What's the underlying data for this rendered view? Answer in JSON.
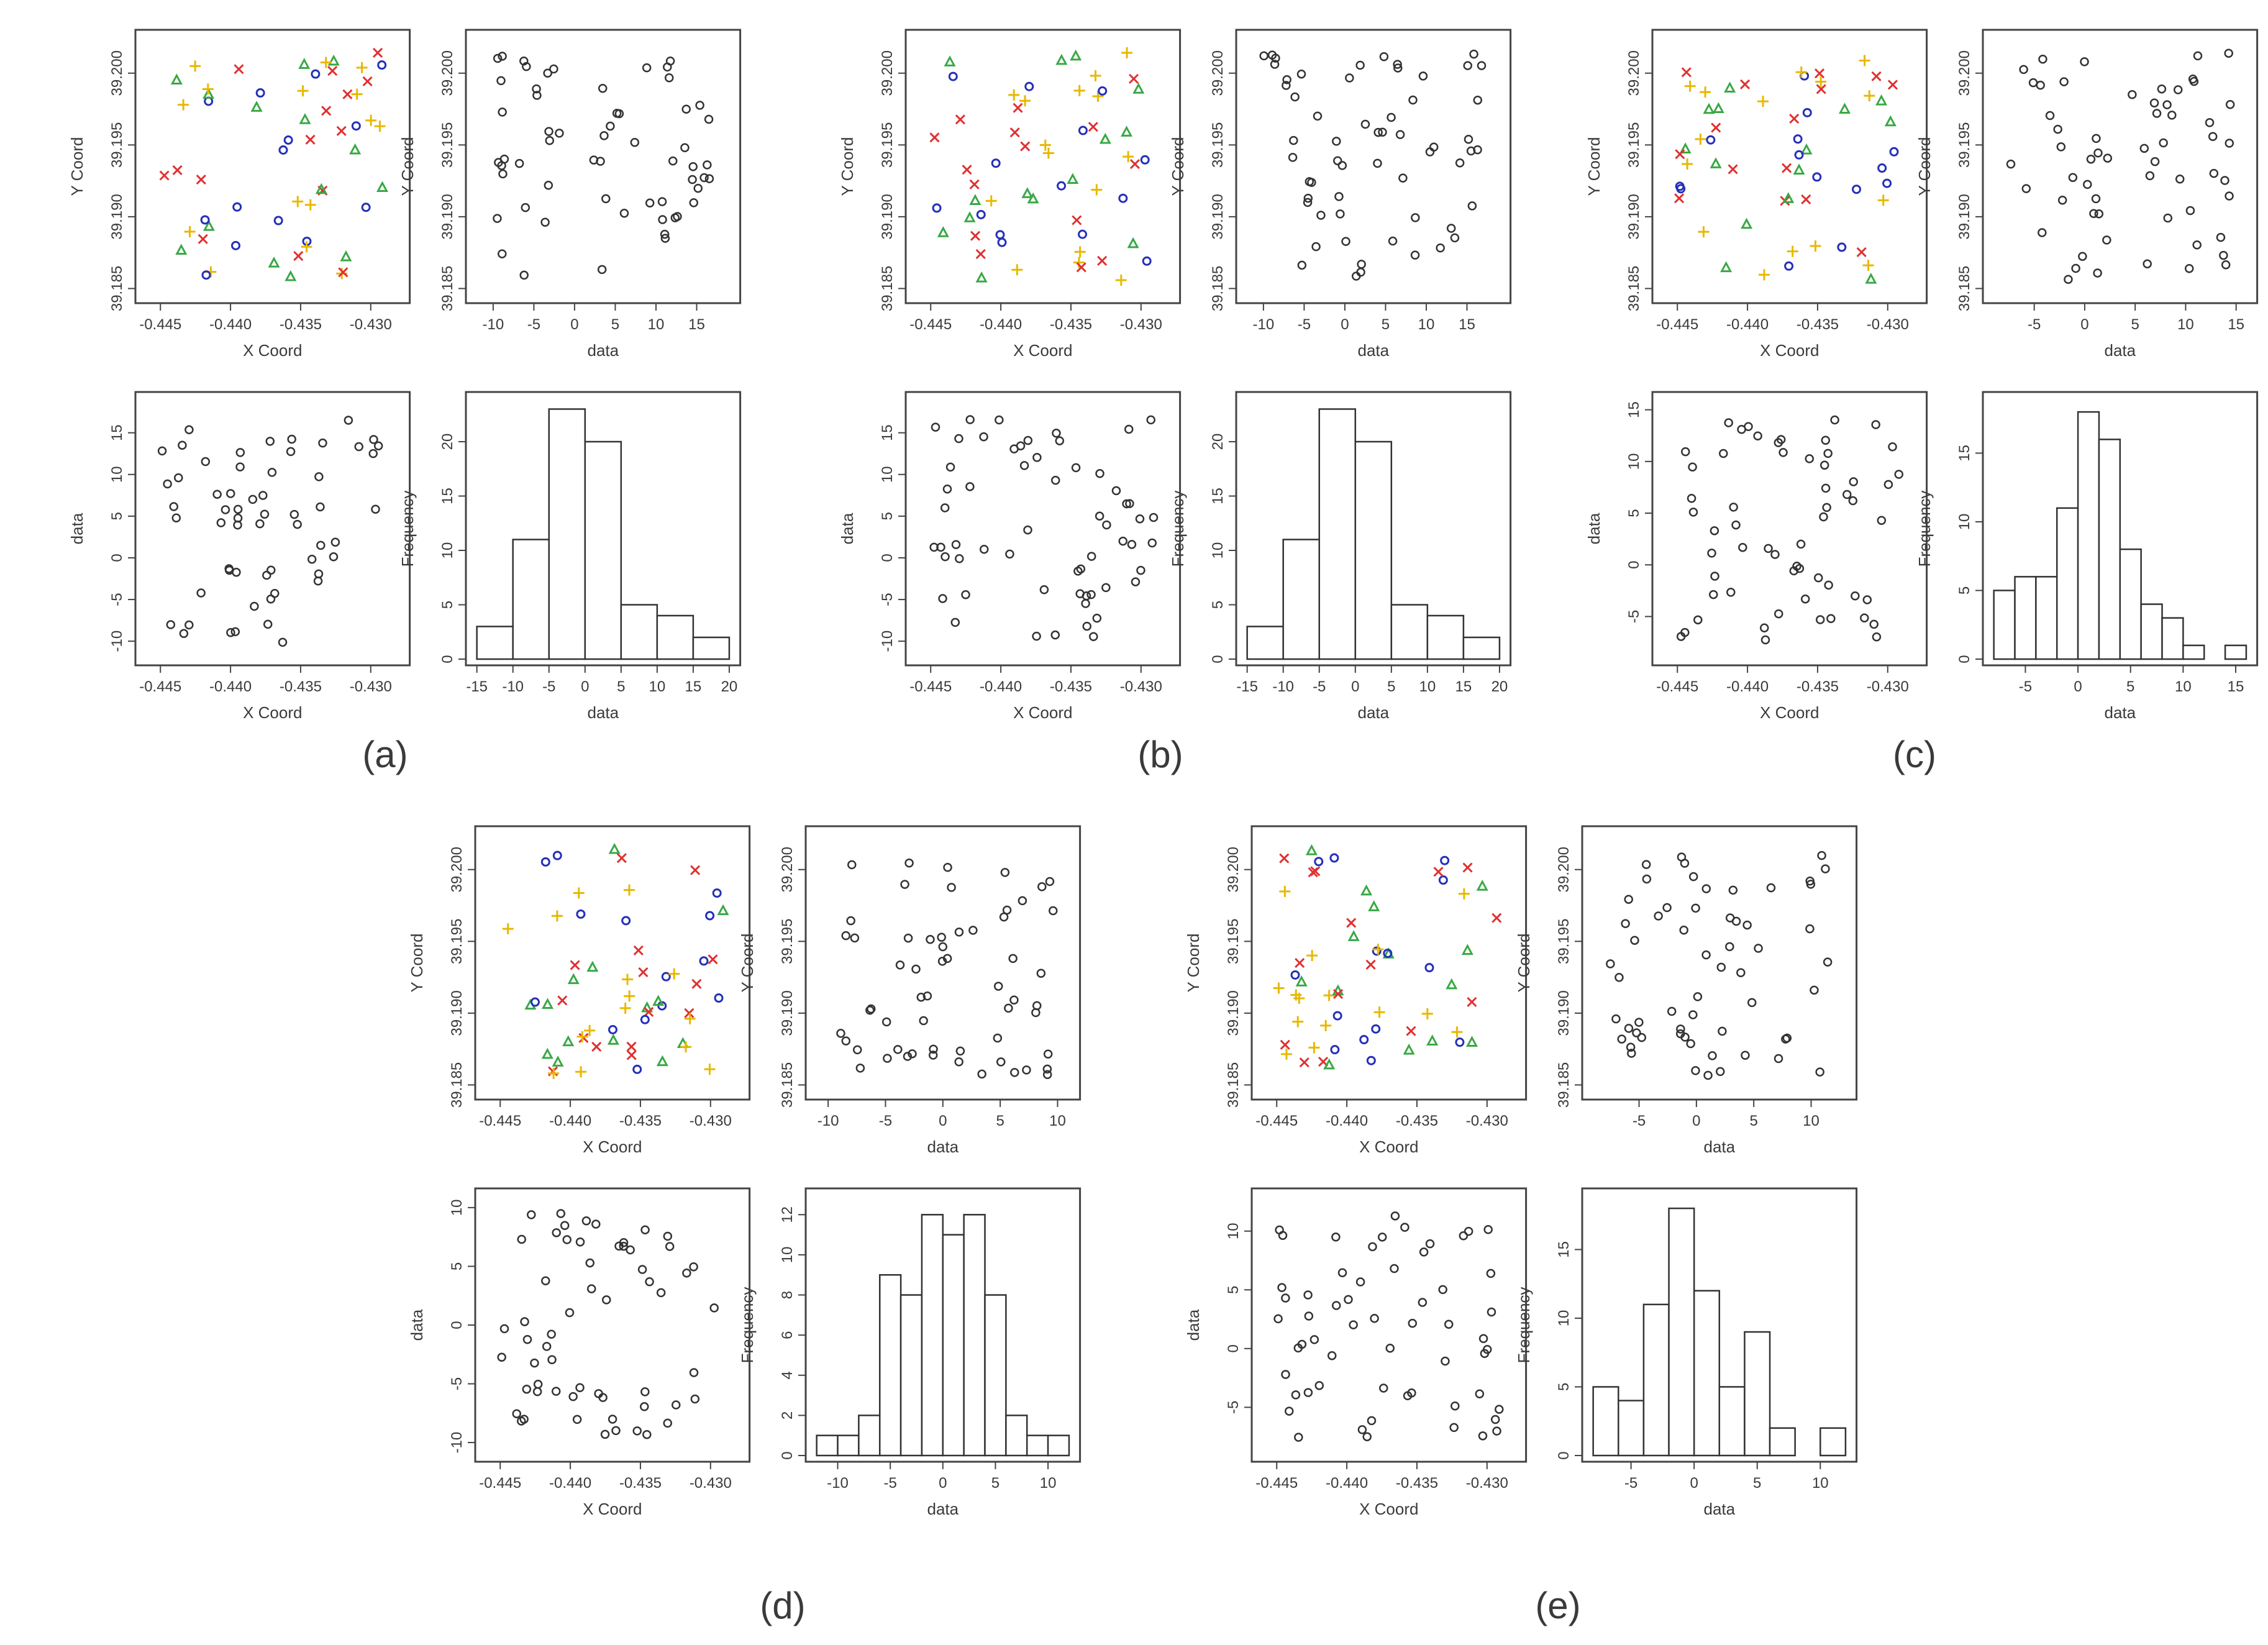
{
  "figure": {
    "panels": [
      {
        "label": "(a)"
      },
      {
        "label": "(b)"
      },
      {
        "label": "(c)"
      },
      {
        "label": "(d)"
      },
      {
        "label": "(e)"
      }
    ],
    "symbol_legend": [
      {
        "shape": "cross",
        "color": "#e03030"
      },
      {
        "shape": "plus",
        "color": "#e8b800"
      },
      {
        "shape": "triangle",
        "color": "#39a845"
      },
      {
        "shape": "circle",
        "color": "#2430b8"
      }
    ]
  },
  "chart_data": [
    {
      "panel": "a",
      "type": "scatter",
      "xlabel": "X Coord",
      "ylabel": "Y Coord",
      "xlim": [
        -0.446,
        -0.428
      ],
      "ylim": [
        39.1845,
        39.2025
      ],
      "xticks": [
        "-0.445",
        "-0.440",
        "-0.435",
        "-0.430"
      ],
      "yticks": [
        "39.185",
        "39.190",
        "39.195",
        "39.200"
      ],
      "seed": 11,
      "groups": 4
    },
    {
      "panel": "a",
      "type": "scatter",
      "xlabel": "data",
      "ylabel": "Y Coord",
      "xlim": [
        -12,
        19
      ],
      "ylim": [
        39.1845,
        39.2025
      ],
      "xticks": [
        "-10",
        "-5",
        "0",
        "5",
        "10",
        "15"
      ],
      "yticks": [
        "39.185",
        "39.190",
        "39.195",
        "39.200"
      ],
      "seed": 12
    },
    {
      "panel": "a",
      "type": "scatter",
      "xlabel": "X Coord",
      "ylabel": "data",
      "xlim": [
        -0.446,
        -0.428
      ],
      "ylim": [
        -12,
        19
      ],
      "xticks": [
        "-0.445",
        "-0.440",
        "-0.435",
        "-0.430"
      ],
      "yticks": [
        "-10",
        "-5",
        "0",
        "5",
        "10",
        "15"
      ],
      "seed": 13
    },
    {
      "panel": "a",
      "type": "bar",
      "xlabel": "data",
      "ylabel": "Frequency",
      "breaks": [
        -15,
        -10,
        -5,
        0,
        5,
        10,
        15,
        20
      ],
      "values": [
        3,
        11,
        23,
        20,
        5,
        4,
        2
      ],
      "ylim": [
        0,
        24
      ],
      "xticks": [
        "-15",
        "-10",
        "-5",
        "0",
        "5",
        "10",
        "15",
        "20"
      ],
      "yticks": [
        "0",
        "5",
        "10",
        "15",
        "20"
      ]
    },
    {
      "panel": "b",
      "type": "scatter",
      "xlabel": "X Coord",
      "ylabel": "Y Coord",
      "xlim": [
        -0.446,
        -0.428
      ],
      "ylim": [
        39.1845,
        39.2025
      ],
      "xticks": [
        "-0.445",
        "-0.440",
        "-0.435",
        "-0.430"
      ],
      "yticks": [
        "39.185",
        "39.190",
        "39.195",
        "39.200"
      ],
      "seed": 21,
      "groups": 4
    },
    {
      "panel": "b",
      "type": "scatter",
      "xlabel": "data",
      "ylabel": "Y Coord",
      "xlim": [
        -12,
        19
      ],
      "ylim": [
        39.1845,
        39.2025
      ],
      "xticks": [
        "-10",
        "-5",
        "0",
        "5",
        "10",
        "15"
      ],
      "yticks": [
        "39.185",
        "39.190",
        "39.195",
        "39.200"
      ],
      "seed": 22
    },
    {
      "panel": "b",
      "type": "scatter",
      "xlabel": "X Coord",
      "ylabel": "data",
      "xlim": [
        -0.446,
        -0.428
      ],
      "ylim": [
        -12,
        19
      ],
      "xticks": [
        "-0.445",
        "-0.440",
        "-0.435",
        "-0.430"
      ],
      "yticks": [
        "-10",
        "-5",
        "0",
        "5",
        "10",
        "15"
      ],
      "seed": 23
    },
    {
      "panel": "b",
      "type": "bar",
      "xlabel": "data",
      "ylabel": "Frequency",
      "breaks": [
        -15,
        -10,
        -5,
        0,
        5,
        10,
        15,
        20
      ],
      "values": [
        3,
        11,
        23,
        20,
        5,
        4,
        2
      ],
      "ylim": [
        0,
        24
      ],
      "xticks": [
        "-15",
        "-10",
        "-5",
        "0",
        "5",
        "10",
        "15",
        "20"
      ],
      "yticks": [
        "0",
        "5",
        "10",
        "15",
        "20"
      ]
    },
    {
      "panel": "c",
      "type": "scatter",
      "xlabel": "X Coord",
      "ylabel": "Y Coord",
      "xlim": [
        -0.446,
        -0.428
      ],
      "ylim": [
        39.1845,
        39.2025
      ],
      "xticks": [
        "-0.445",
        "-0.440",
        "-0.435",
        "-0.430"
      ],
      "yticks": [
        "39.185",
        "39.190",
        "39.195",
        "39.200"
      ],
      "seed": 31,
      "groups": 4
    },
    {
      "panel": "c",
      "type": "scatter",
      "xlabel": "data",
      "ylabel": "Y Coord",
      "xlim": [
        -9,
        16
      ],
      "ylim": [
        39.1845,
        39.2025
      ],
      "xticks": [
        "-5",
        "0",
        "5",
        "10",
        "15"
      ],
      "yticks": [
        "39.185",
        "39.190",
        "39.195",
        "39.200"
      ],
      "seed": 32
    },
    {
      "panel": "c",
      "type": "scatter",
      "xlabel": "X Coord",
      "ylabel": "data",
      "xlim": [
        -0.446,
        -0.428
      ],
      "ylim": [
        -9,
        16
      ],
      "xticks": [
        "-0.445",
        "-0.440",
        "-0.435",
        "-0.430"
      ],
      "yticks": [
        "-5",
        "0",
        "5",
        "10",
        "15"
      ],
      "seed": 33
    },
    {
      "panel": "c",
      "type": "bar",
      "xlabel": "data",
      "ylabel": "Frequency",
      "breaks": [
        -8,
        -6,
        -4,
        -2,
        0,
        2,
        4,
        6,
        8,
        10,
        12,
        14,
        16
      ],
      "values": [
        5,
        6,
        6,
        11,
        18,
        16,
        8,
        4,
        3,
        1,
        0,
        1
      ],
      "ylim": [
        0,
        19
      ],
      "xticks": [
        "-5",
        "0",
        "5",
        "10",
        "15"
      ],
      "yticks": [
        "0",
        "5",
        "10",
        "15"
      ]
    },
    {
      "panel": "d",
      "type": "scatter",
      "xlabel": "X Coord",
      "ylabel": "Y Coord",
      "xlim": [
        -0.446,
        -0.428
      ],
      "ylim": [
        39.1845,
        39.2025
      ],
      "xticks": [
        "-0.445",
        "-0.440",
        "-0.435",
        "-0.430"
      ],
      "yticks": [
        "39.185",
        "39.190",
        "39.195",
        "39.200"
      ],
      "seed": 41,
      "groups": 4
    },
    {
      "panel": "d",
      "type": "scatter",
      "xlabel": "data",
      "ylabel": "Y Coord",
      "xlim": [
        -11,
        11
      ],
      "ylim": [
        39.1845,
        39.2025
      ],
      "xticks": [
        "-10",
        "-5",
        "0",
        "5",
        "10"
      ],
      "yticks": [
        "39.185",
        "39.190",
        "39.195",
        "39.200"
      ],
      "seed": 42
    },
    {
      "panel": "d",
      "type": "scatter",
      "xlabel": "X Coord",
      "ylabel": "data",
      "xlim": [
        -0.446,
        -0.428
      ],
      "ylim": [
        -11,
        11
      ],
      "xticks": [
        "-0.445",
        "-0.440",
        "-0.435",
        "-0.430"
      ],
      "yticks": [
        "-10",
        "-5",
        "0",
        "5",
        "10"
      ],
      "seed": 43
    },
    {
      "panel": "d",
      "type": "bar",
      "xlabel": "data",
      "ylabel": "Frequency",
      "breaks": [
        -12,
        -10,
        -8,
        -6,
        -4,
        -2,
        0,
        2,
        4,
        6,
        8,
        10,
        12
      ],
      "values": [
        1,
        1,
        2,
        9,
        8,
        12,
        11,
        12,
        8,
        2,
        1,
        1
      ],
      "ylim": [
        0,
        13
      ],
      "xticks": [
        "-10",
        "-5",
        "0",
        "5",
        "10"
      ],
      "yticks": [
        "0",
        "2",
        "4",
        "6",
        "8",
        "10",
        "12"
      ]
    },
    {
      "panel": "e",
      "type": "scatter",
      "xlabel": "X Coord",
      "ylabel": "Y Coord",
      "xlim": [
        -0.446,
        -0.428
      ],
      "ylim": [
        39.1845,
        39.2025
      ],
      "xticks": [
        "-0.445",
        "-0.440",
        "-0.435",
        "-0.430"
      ],
      "yticks": [
        "39.185",
        "39.190",
        "39.195",
        "39.200"
      ],
      "seed": 51,
      "groups": 4
    },
    {
      "panel": "e",
      "type": "scatter",
      "xlabel": "data",
      "ylabel": "Y Coord",
      "xlim": [
        -9,
        13
      ],
      "ylim": [
        39.1845,
        39.2025
      ],
      "xticks": [
        "-5",
        "0",
        "5",
        "10"
      ],
      "yticks": [
        "39.185",
        "39.190",
        "39.195",
        "39.200"
      ],
      "seed": 52
    },
    {
      "panel": "e",
      "type": "scatter",
      "xlabel": "X Coord",
      "ylabel": "data",
      "xlim": [
        -0.446,
        -0.428
      ],
      "ylim": [
        -9,
        13
      ],
      "xticks": [
        "-0.445",
        "-0.440",
        "-0.435",
        "-0.430"
      ],
      "yticks": [
        "-5",
        "0",
        "5",
        "10"
      ],
      "seed": 53
    },
    {
      "panel": "e",
      "type": "bar",
      "xlabel": "data",
      "ylabel": "Frequency",
      "breaks": [
        -8,
        -6,
        -4,
        -2,
        0,
        2,
        4,
        6,
        8,
        10,
        12
      ],
      "values": [
        5,
        4,
        11,
        18,
        12,
        5,
        9,
        2,
        0,
        2
      ],
      "ylim": [
        0,
        19
      ],
      "xticks": [
        "-5",
        "0",
        "5",
        "10"
      ],
      "yticks": [
        "0",
        "5",
        "10",
        "15"
      ]
    }
  ]
}
